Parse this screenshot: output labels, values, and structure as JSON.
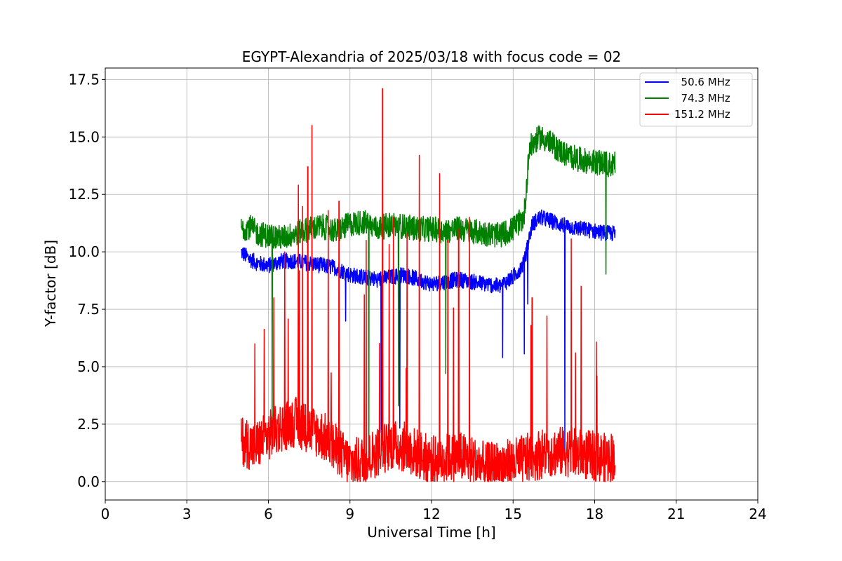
{
  "chart_data": {
    "type": "line",
    "title": "EGYPT-Alexandria of 2025/03/18 with focus code = 02",
    "xlabel": "Universal Time [h]",
    "ylabel": "Y-factor [dB]",
    "xlim": [
      0,
      24
    ],
    "ylim": [
      -0.8,
      18.0
    ],
    "xticks": [
      0,
      3,
      6,
      9,
      12,
      15,
      18,
      21,
      24
    ],
    "xtick_labels": [
      "0",
      "3",
      "6",
      "9",
      "12",
      "15",
      "18",
      "21",
      "24"
    ],
    "yticks": [
      0.0,
      2.5,
      5.0,
      7.5,
      10.0,
      12.5,
      15.0,
      17.5
    ],
    "ytick_labels": [
      "0.0",
      "2.5",
      "5.0",
      "7.5",
      "10.0",
      "12.5",
      "15.0",
      "17.5"
    ],
    "grid": true,
    "legend_position": "top-right",
    "series": [
      {
        "name": "  50.6 MHz",
        "color": "#0000ff",
        "x": [
          5.0,
          5.3,
          5.6,
          6.0,
          6.5,
          7.0,
          7.5,
          8.0,
          8.5,
          9.0,
          9.5,
          10.0,
          10.5,
          11.0,
          11.5,
          12.0,
          12.5,
          13.0,
          13.5,
          14.0,
          14.5,
          15.0,
          15.4,
          15.7,
          16.0,
          16.5,
          17.0,
          17.5,
          18.0,
          18.5,
          18.75
        ],
        "y": [
          10.0,
          9.7,
          9.5,
          9.4,
          9.6,
          9.6,
          9.5,
          9.4,
          9.3,
          9.0,
          8.9,
          8.8,
          8.9,
          9.0,
          8.8,
          8.6,
          8.7,
          8.8,
          8.7,
          8.6,
          8.5,
          8.9,
          9.5,
          11.2,
          11.5,
          11.3,
          11.1,
          11.0,
          10.9,
          10.8,
          10.8
        ]
      },
      {
        "name": "  74.3 MHz",
        "color": "#008000",
        "x": [
          5.0,
          5.3,
          5.6,
          6.0,
          6.5,
          7.0,
          7.5,
          8.0,
          8.5,
          9.0,
          9.5,
          10.0,
          10.5,
          11.0,
          11.5,
          12.0,
          12.5,
          13.0,
          13.5,
          14.0,
          14.5,
          15.0,
          15.4,
          15.6,
          15.8,
          16.0,
          16.3,
          16.6,
          17.0,
          17.5,
          18.0,
          18.5,
          18.75
        ],
        "y": [
          11.0,
          11.1,
          10.8,
          10.7,
          10.6,
          10.8,
          11.0,
          11.1,
          10.9,
          11.2,
          11.3,
          11.0,
          11.2,
          11.1,
          11.0,
          11.0,
          10.9,
          11.0,
          10.9,
          10.8,
          10.7,
          11.0,
          11.5,
          14.5,
          14.8,
          15.0,
          14.8,
          14.5,
          14.2,
          14.0,
          13.9,
          13.8,
          13.8
        ]
      },
      {
        "name": "151.2 MHz",
        "color": "#ff0000",
        "x": [
          5.0,
          5.5,
          6.0,
          6.5,
          7.0,
          7.5,
          8.0,
          8.5,
          9.0,
          9.5,
          10.0,
          10.5,
          11.0,
          11.5,
          12.0,
          12.5,
          13.0,
          13.5,
          14.0,
          14.5,
          15.0,
          15.5,
          16.0,
          16.5,
          17.0,
          17.5,
          18.0,
          18.5,
          18.75
        ],
        "y": [
          1.8,
          1.5,
          2.0,
          2.4,
          2.6,
          2.3,
          2.0,
          1.4,
          0.8,
          0.9,
          1.3,
          1.6,
          1.5,
          1.2,
          0.9,
          1.0,
          1.1,
          0.9,
          0.6,
          0.7,
          0.8,
          1.0,
          1.2,
          1.3,
          1.3,
          1.2,
          1.1,
          1.0,
          1.2
        ],
        "spikes": [
          {
            "x": 5.5,
            "y": 6.0
          },
          {
            "x": 6.2,
            "y": 8.0
          },
          {
            "x": 6.6,
            "y": 10.0
          },
          {
            "x": 7.1,
            "y": 12.9
          },
          {
            "x": 7.45,
            "y": 13.7
          },
          {
            "x": 7.6,
            "y": 15.5
          },
          {
            "x": 8.2,
            "y": 11.8
          },
          {
            "x": 8.6,
            "y": 12.2
          },
          {
            "x": 9.6,
            "y": 10.5
          },
          {
            "x": 10.2,
            "y": 17.1
          },
          {
            "x": 10.6,
            "y": 11.5
          },
          {
            "x": 11.1,
            "y": 10.8
          },
          {
            "x": 11.55,
            "y": 14.2
          },
          {
            "x": 12.3,
            "y": 13.4
          },
          {
            "x": 12.6,
            "y": 10.5
          },
          {
            "x": 13.0,
            "y": 11.0
          },
          {
            "x": 13.4,
            "y": 11.5
          },
          {
            "x": 15.7,
            "y": 8.0
          },
          {
            "x": 17.3,
            "y": 5.6
          },
          {
            "x": 17.5,
            "y": 8.5
          }
        ]
      }
    ]
  }
}
